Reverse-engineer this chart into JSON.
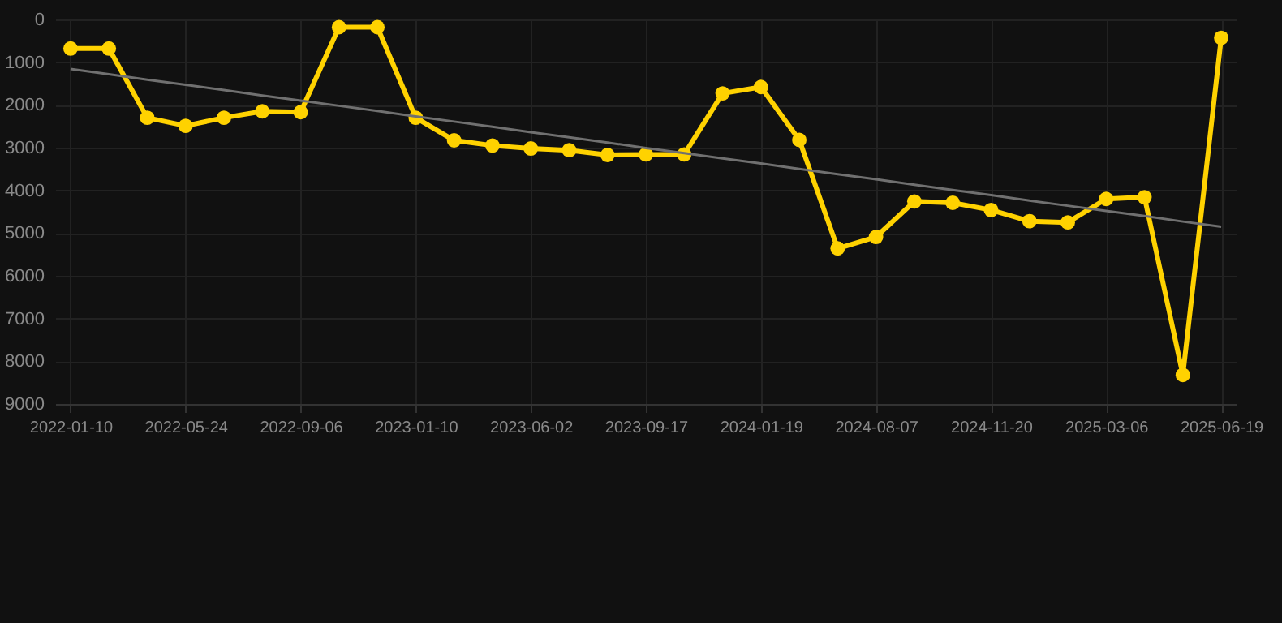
{
  "chart_data": {
    "type": "line",
    "categories": [
      "2022-01-10",
      null,
      null,
      "2022-05-24",
      null,
      null,
      "2022-09-06",
      null,
      null,
      "2023-01-10",
      null,
      null,
      "2023-06-02",
      null,
      null,
      "2023-09-17",
      null,
      null,
      "2024-01-19",
      null,
      null,
      "2024-08-07",
      null,
      null,
      "2024-11-20",
      null,
      null,
      "2025-03-06",
      null,
      null,
      "2025-06-19"
    ],
    "series": [
      {
        "color": "#ffd200",
        "values": [
          680,
          680,
          2300,
          2490,
          2300,
          2150,
          2170,
          180,
          180,
          2300,
          2830,
          2950,
          3020,
          3060,
          3170,
          3160,
          3160,
          1730,
          1580,
          2820,
          5360,
          5090,
          4260,
          4290,
          4460,
          4720,
          4750,
          4200,
          4160,
          8320,
          430
        ]
      },
      {
        "type": "line",
        "color": "#707070",
        "values": [
          1160,
          1280,
          1410,
          1530,
          1650,
          1780,
          1900,
          2020,
          2140,
          2270,
          2390,
          2510,
          2640,
          2760,
          2880,
          3010,
          3130,
          3250,
          3370,
          3500,
          3620,
          3740,
          3870,
          3990,
          4110,
          4240,
          4360,
          4480,
          4600,
          4730,
          4850
        ],
        "marker": "none"
      }
    ],
    "ylim": [
      9000,
      0
    ],
    "yticks": [
      0,
      1000,
      2000,
      3000,
      4000,
      5000,
      6000,
      7000,
      8000,
      9000
    ],
    "grid": true,
    "marker": "circle",
    "line_style": "solid"
  }
}
